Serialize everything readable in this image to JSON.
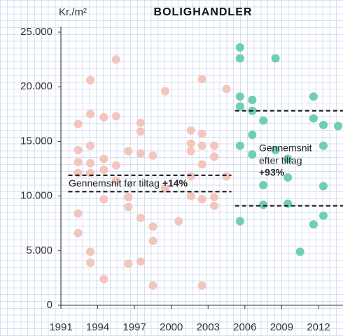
{
  "chart_data": {
    "type": "scatter",
    "title": "BOLIGHANDLER",
    "y_label": "Kr./m²",
    "xlim": [
      1991,
      2014
    ],
    "ylim": [
      0,
      25000
    ],
    "xticks": [
      1991,
      1994,
      1997,
      2000,
      2003,
      2006,
      2009,
      2012
    ],
    "yticks": [
      0,
      {
        "value": 5000,
        "label": "5.000"
      },
      {
        "value": 10000,
        "label": "10.000"
      },
      {
        "value": 15000,
        "label": "15.000"
      },
      {
        "value": 20000,
        "label": "20.000"
      },
      {
        "value": 25000,
        "label": "25.000"
      }
    ],
    "grid": false,
    "series": [
      {
        "color": "#f2c6bd",
        "x": [
          1992.4,
          1992.4,
          1992.4,
          1992.4,
          1992.4,
          1992.4,
          1993.4,
          1993.4,
          1993.4,
          1993.4,
          1993.4,
          1993.4,
          1993.4,
          1994.5,
          1994.5,
          1994.5,
          1994.5,
          1994.5,
          1995.5,
          1995.5,
          1995.5,
          1995.5,
          1996.5,
          1996.5,
          1996.5,
          1996.5,
          1997.5,
          1997.5,
          1997.5,
          1997.5,
          1997.5,
          1998.5,
          1998.5,
          1998.5,
          1998.5,
          1999.5,
          1999.5,
          2000.6,
          2001.6,
          2001.6,
          2001.6,
          2001.6,
          2001.6,
          2002.5,
          2002.5,
          2002.5,
          2002.5,
          2002.5,
          2002.5,
          2003.5,
          2003.5,
          2003.5,
          2003.5,
          2004.5,
          2004.5
        ],
        "values": [
          16600,
          14200,
          13100,
          12100,
          8400,
          6600,
          20600,
          17500,
          14600,
          13000,
          12100,
          4900,
          3900,
          17200,
          13400,
          12400,
          9700,
          2400,
          22500,
          17300,
          12800,
          11400,
          14100,
          9900,
          9000,
          3800,
          16700,
          15900,
          13900,
          8000,
          4000,
          13700,
          7200,
          5900,
          1800,
          19600,
          10700,
          7700,
          16000,
          14800,
          14100,
          11800,
          10000,
          15700,
          14600,
          12900,
          20700,
          1800,
          9700,
          14600,
          13600,
          9900,
          9100,
          19800,
          11800
        ]
      },
      {
        "color": "#6fcfb1",
        "x": [
          2005.6,
          2005.6,
          2005.6,
          2005.6,
          2005.6,
          2005.6,
          2006.6,
          2006.6,
          2006.6,
          2006.6,
          2007.5,
          2007.5,
          2007.5,
          2008.5,
          2008.5,
          2009.5,
          2009.5,
          2009.5,
          2010.5,
          2011.6,
          2011.6,
          2011.6,
          2012.4,
          2012.4,
          2012.4,
          2012.4,
          2013.6
        ],
        "values": [
          23600,
          22600,
          19100,
          18200,
          14600,
          7700,
          18800,
          17800,
          15600,
          13800,
          16900,
          11000,
          9200,
          22600,
          14200,
          13400,
          11700,
          9300,
          4900,
          19100,
          17100,
          7400,
          16500,
          14600,
          10900,
          8200,
          16400
        ]
      }
    ],
    "reference_lines": [
      {
        "value": 11900,
        "xlim": [
          1991.6,
          2004.9
        ]
      },
      {
        "value": 10400,
        "xlim": [
          1991.6,
          2004.9
        ]
      },
      {
        "value": 17800,
        "xlim": [
          2005.2,
          2014
        ]
      },
      {
        "value": 9100,
        "xlim": [
          2005.2,
          2014
        ]
      }
    ],
    "annotations": [
      {
        "text": "Gennemsnit før tiltag",
        "highlight": "+14%"
      },
      {
        "lines": [
          "Gennemsnit",
          "efter tiltag"
        ],
        "highlight": "+93%"
      }
    ]
  }
}
